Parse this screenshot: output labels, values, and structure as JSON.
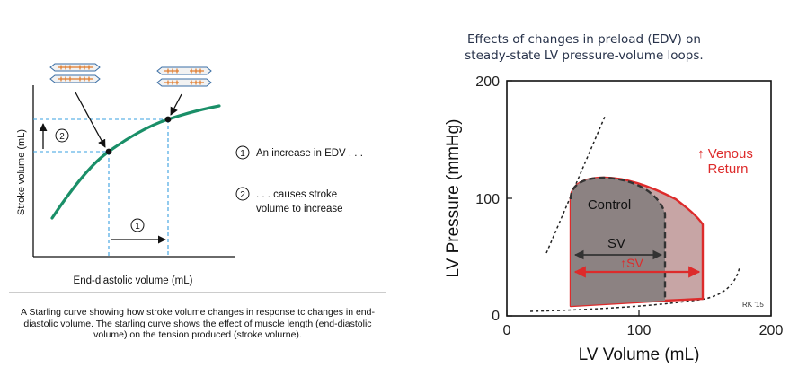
{
  "starling": {
    "y_axis_label": "Stroke volume (mL)",
    "x_axis_label": "End-diastolic volume (mL)",
    "step1_marker": "1",
    "step2_marker": "2",
    "legend": {
      "item1_number": "1",
      "item1_text": "An increase in EDV . . .",
      "item2_number": "2",
      "item2_text_line1": ". . . causes stroke",
      "item2_text_line2": "volume to increase"
    },
    "caption": "A Starling curve showing how stroke volume changes in response tc changes in end-diastolic volume. The starling curve shows the effect of muscle length (end-diastolic volume) on the tension produced (stroke volurne).",
    "colors": {
      "curve": "#1a8f68",
      "guides": "#3aa0e0",
      "sarcomere_fill": "#f2f2f2",
      "sarcomere_stroke": "#3a6ea5",
      "myofilament": "#e07a2a"
    }
  },
  "pv_loop": {
    "title_line1": "Effects of changes in preload (EDV) on",
    "title_line2": "steady-state LV pressure-volume loops.",
    "y_label": "LV Pressure (mmHg)",
    "x_label": "LV Volume (mL)",
    "y_ticks": [
      "0",
      "100",
      "200"
    ],
    "x_ticks": [
      "0",
      "100",
      "200"
    ],
    "control_label": "Control",
    "sv_label": "SV",
    "increased_sv_label": "↑SV",
    "venous_return_line1": "↑ Venous",
    "venous_return_line2": "Return",
    "signature": "RK '15",
    "colors": {
      "control_fill": "#8c8282",
      "increased_fill": "#c7a5a5",
      "red": "#dd2b2b",
      "dark": "#333333"
    }
  }
}
